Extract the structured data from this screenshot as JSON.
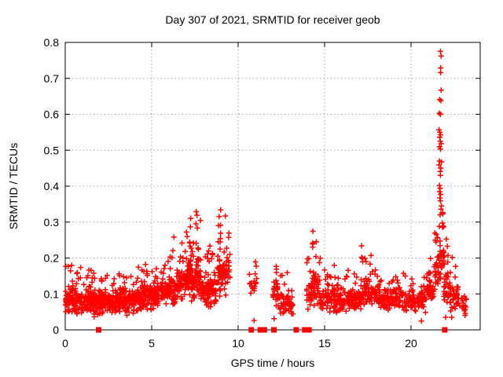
{
  "chart_data": {
    "type": "scatter",
    "title": "Day 307 of 2021, SRMTID for receiver geob",
    "xlabel": "GPS time / hours",
    "ylabel": "SRMTID / TECUs",
    "xlim": [
      0,
      24
    ],
    "ylim": [
      0,
      0.8
    ],
    "xticks": [
      0,
      5,
      10,
      15,
      20
    ],
    "xtick_labels": [
      "0",
      "5",
      "10",
      "15",
      "20"
    ],
    "yticks": [
      0,
      0.1,
      0.2,
      0.3,
      0.4,
      0.5,
      0.6,
      0.7,
      0.8
    ],
    "ytick_labels": [
      "0",
      "0.1",
      "0.2",
      "0.3",
      "0.4",
      "0.5",
      "0.6",
      "0.7",
      "0.8"
    ],
    "grid": true,
    "legend": "none",
    "marker": {
      "shape": "plus",
      "color": "#ff0000",
      "size": 7
    },
    "zero_marker": {
      "shape": "filled-square",
      "color": "#ff0000",
      "size": 7
    },
    "cloud_bins_format": [
      "x_start",
      "x_end",
      "n_band",
      "band_lo",
      "band_hi",
      "n_tail",
      "tail_lo",
      "tail_hi"
    ],
    "cloud_bins": [
      [
        0.0,
        0.5,
        55,
        0.04,
        0.13,
        5,
        0.13,
        0.18
      ],
      [
        0.5,
        1.0,
        55,
        0.04,
        0.12,
        6,
        0.12,
        0.18
      ],
      [
        1.0,
        1.5,
        50,
        0.04,
        0.125,
        5,
        0.125,
        0.17
      ],
      [
        1.5,
        2.0,
        50,
        0.03,
        0.12,
        4,
        0.12,
        0.165
      ],
      [
        2.0,
        2.5,
        50,
        0.04,
        0.12,
        5,
        0.12,
        0.165
      ],
      [
        2.5,
        3.0,
        45,
        0.04,
        0.12,
        3,
        0.12,
        0.15
      ],
      [
        3.0,
        3.5,
        50,
        0.045,
        0.13,
        4,
        0.13,
        0.165
      ],
      [
        3.5,
        4.0,
        45,
        0.04,
        0.12,
        3,
        0.12,
        0.15
      ],
      [
        4.0,
        4.5,
        50,
        0.05,
        0.13,
        5,
        0.13,
        0.175
      ],
      [
        4.5,
        5.0,
        50,
        0.05,
        0.14,
        5,
        0.14,
        0.185
      ],
      [
        5.0,
        5.5,
        45,
        0.055,
        0.14,
        4,
        0.14,
        0.18
      ],
      [
        5.5,
        6.0,
        45,
        0.06,
        0.15,
        5,
        0.15,
        0.24
      ],
      [
        6.0,
        6.5,
        50,
        0.06,
        0.16,
        6,
        0.16,
        0.28
      ],
      [
        6.5,
        7.0,
        50,
        0.07,
        0.18,
        6,
        0.18,
        0.26
      ],
      [
        7.0,
        7.3,
        40,
        0.09,
        0.22,
        8,
        0.22,
        0.335
      ],
      [
        7.3,
        7.55,
        25,
        0.07,
        0.18,
        3,
        0.18,
        0.25
      ],
      [
        7.55,
        7.85,
        35,
        0.08,
        0.22,
        8,
        0.22,
        0.33
      ],
      [
        7.85,
        8.35,
        45,
        0.055,
        0.16,
        5,
        0.16,
        0.22
      ],
      [
        8.35,
        8.75,
        40,
        0.06,
        0.17,
        4,
        0.17,
        0.24
      ],
      [
        8.75,
        9.3,
        50,
        0.08,
        0.22,
        10,
        0.22,
        0.335
      ],
      [
        9.3,
        9.55,
        15,
        0.12,
        0.22,
        3,
        0.22,
        0.27
      ],
      [
        10.65,
        11.1,
        16,
        0.095,
        0.165,
        2,
        0.165,
        0.19
      ],
      [
        12.0,
        12.3,
        22,
        0.06,
        0.15,
        3,
        0.15,
        0.185
      ],
      [
        12.3,
        12.9,
        30,
        0.04,
        0.13,
        3,
        0.13,
        0.16
      ],
      [
        12.9,
        13.2,
        16,
        0.03,
        0.1,
        2,
        0.1,
        0.12
      ],
      [
        13.95,
        14.3,
        25,
        0.05,
        0.15,
        4,
        0.15,
        0.2
      ],
      [
        14.3,
        14.75,
        35,
        0.06,
        0.18,
        8,
        0.18,
        0.28
      ],
      [
        14.75,
        15.25,
        40,
        0.05,
        0.13,
        4,
        0.13,
        0.17
      ],
      [
        15.25,
        15.75,
        40,
        0.045,
        0.13,
        4,
        0.13,
        0.19
      ],
      [
        15.75,
        16.25,
        40,
        0.05,
        0.12,
        3,
        0.12,
        0.15
      ],
      [
        16.25,
        16.75,
        40,
        0.05,
        0.13,
        4,
        0.13,
        0.17
      ],
      [
        16.75,
        17.1,
        30,
        0.05,
        0.12,
        2,
        0.12,
        0.15
      ],
      [
        17.1,
        17.45,
        30,
        0.06,
        0.16,
        6,
        0.16,
        0.24
      ],
      [
        17.45,
        18.0,
        40,
        0.06,
        0.15,
        6,
        0.15,
        0.22
      ],
      [
        18.0,
        18.5,
        40,
        0.05,
        0.13,
        3,
        0.13,
        0.16
      ],
      [
        18.5,
        19.0,
        40,
        0.05,
        0.12,
        3,
        0.12,
        0.145
      ],
      [
        19.0,
        19.6,
        40,
        0.05,
        0.13,
        4,
        0.13,
        0.16
      ],
      [
        19.6,
        20.3,
        40,
        0.035,
        0.12,
        4,
        0.12,
        0.15
      ],
      [
        20.3,
        20.9,
        35,
        0.045,
        0.12,
        4,
        0.12,
        0.15
      ],
      [
        20.9,
        21.3,
        30,
        0.07,
        0.15,
        5,
        0.15,
        0.2
      ],
      [
        21.3,
        21.6,
        20,
        0.1,
        0.22,
        6,
        0.22,
        0.3
      ],
      [
        21.6,
        21.9,
        25,
        0.14,
        0.26,
        8,
        0.26,
        0.33
      ],
      [
        21.9,
        22.2,
        25,
        0.07,
        0.18,
        6,
        0.18,
        0.26
      ],
      [
        22.2,
        22.7,
        35,
        0.045,
        0.13,
        5,
        0.13,
        0.21
      ],
      [
        22.7,
        23.2,
        20,
        0.035,
        0.1,
        2,
        0.1,
        0.12
      ]
    ],
    "spike_points": [
      [
        21.7,
        0.775
      ],
      [
        21.74,
        0.762
      ],
      [
        21.71,
        0.729
      ],
      [
        21.71,
        0.716
      ],
      [
        21.74,
        0.667
      ],
      [
        21.66,
        0.641
      ],
      [
        21.73,
        0.638
      ],
      [
        21.63,
        0.603
      ],
      [
        21.7,
        0.6
      ],
      [
        21.62,
        0.557
      ],
      [
        21.67,
        0.55
      ],
      [
        21.71,
        0.543
      ],
      [
        21.66,
        0.536
      ],
      [
        21.69,
        0.525
      ],
      [
        21.74,
        0.518
      ],
      [
        21.64,
        0.51
      ],
      [
        21.7,
        0.503
      ],
      [
        21.65,
        0.47
      ],
      [
        21.76,
        0.467
      ],
      [
        21.62,
        0.459
      ],
      [
        21.72,
        0.45
      ],
      [
        21.69,
        0.441
      ],
      [
        21.7,
        0.43
      ],
      [
        21.64,
        0.402
      ],
      [
        21.68,
        0.394
      ],
      [
        21.65,
        0.385
      ],
      [
        21.71,
        0.377
      ],
      [
        21.67,
        0.367
      ],
      [
        21.7,
        0.359
      ],
      [
        21.76,
        0.345
      ],
      [
        21.73,
        0.336
      ]
    ],
    "outlier_points": [
      [
        10.92,
        0.026
      ],
      [
        12.08,
        0.031
      ],
      [
        20.6,
        0.025
      ],
      [
        22.0,
        0.035
      ],
      [
        22.35,
        0.035
      ]
    ],
    "zero_value_hours": [
      1.93,
      10.76,
      11.28,
      11.52,
      12.07,
      13.36,
      13.85,
      14.1,
      21.95
    ]
  }
}
